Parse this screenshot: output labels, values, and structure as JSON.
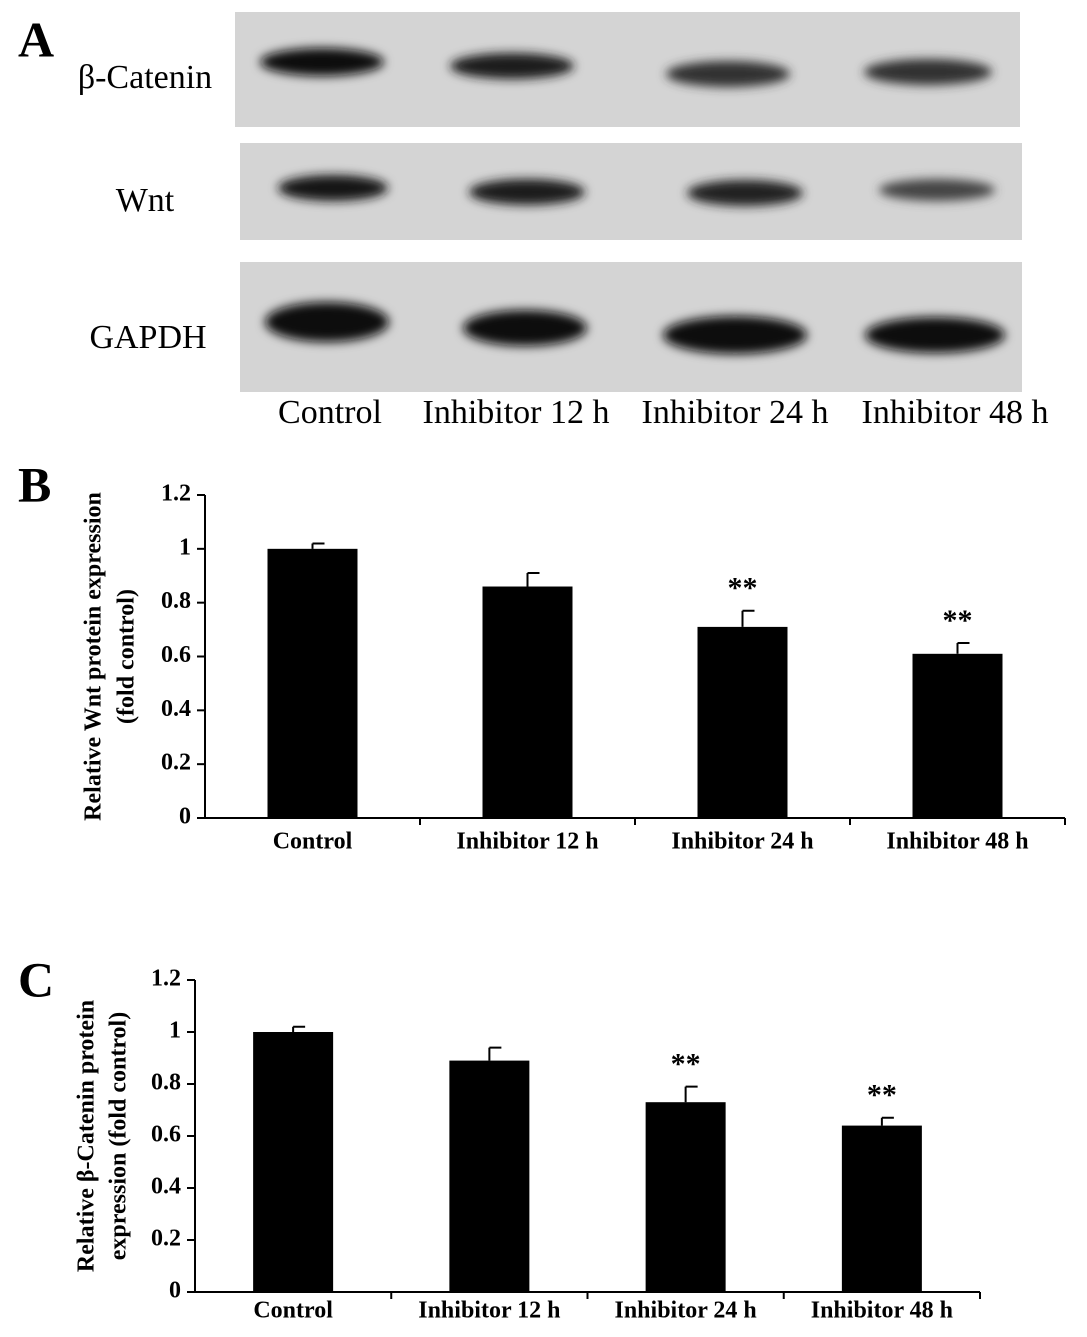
{
  "blot": {
    "panel_label": "A",
    "rows": [
      "β-Catenin",
      "Wnt",
      "GAPDH"
    ],
    "lanes": [
      "Control",
      "Inhibitor 12 h",
      "Inhibitor 24 h",
      "Inhibitor 48 h"
    ]
  },
  "chart_data": [
    {
      "type": "bar",
      "panel_label": "B",
      "ylabel": [
        "Relative Wnt protein expression",
        "(fold control)"
      ],
      "categories": [
        "Control",
        "Inhibitor 12 h",
        "Inhibitor 24 h",
        "Inhibitor 48 h"
      ],
      "values": [
        1.0,
        0.86,
        0.71,
        0.61
      ],
      "errors": [
        0.02,
        0.05,
        0.06,
        0.04
      ],
      "significance": [
        null,
        null,
        "**",
        "**"
      ],
      "color": "#000000",
      "ylim": [
        0,
        1.2
      ],
      "yticks": [
        0,
        0.2,
        0.4,
        0.6,
        0.8,
        1,
        1.2
      ]
    },
    {
      "type": "bar",
      "panel_label": "C",
      "ylabel": [
        "Relative β-Catenin protein",
        "expression  (fold control)"
      ],
      "categories": [
        "Control",
        "Inhibitor 12 h",
        "Inhibitor 24 h",
        "Inhibitor 48 h"
      ],
      "values": [
        1.0,
        0.89,
        0.73,
        0.64
      ],
      "errors": [
        0.02,
        0.05,
        0.06,
        0.03
      ],
      "significance": [
        null,
        null,
        "**",
        "**"
      ],
      "color": "#000000",
      "ylim": [
        0,
        1.2
      ],
      "yticks": [
        0,
        0.2,
        0.4,
        0.6,
        0.8,
        1,
        1.2
      ]
    }
  ]
}
